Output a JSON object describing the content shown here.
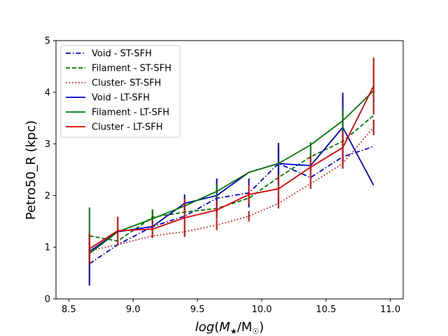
{
  "chart_data": {
    "type": "line",
    "title": "",
    "xlabel": "log(M★/M☉)",
    "ylabel": "Petro50_R (kpc)",
    "xlim": [
      8.4,
      11.1
    ],
    "ylim": [
      0,
      5
    ],
    "x_ticks": [
      8.5,
      9.0,
      9.5,
      10.0,
      10.5,
      11.0
    ],
    "x_tick_labels": [
      "8.5",
      "9.0",
      "9.5",
      "10.0",
      "10.5",
      "11.0"
    ],
    "y_ticks": [
      0,
      1,
      2,
      3,
      4,
      5
    ],
    "y_tick_labels": [
      "0",
      "1",
      "2",
      "3",
      "4",
      "5"
    ],
    "grid": false,
    "legend_position": "upper-left",
    "series": [
      {
        "name": "Void - ST-SFH",
        "color": "#0000cc",
        "dash": "dashdot",
        "x": [
          8.66,
          8.88,
          9.15,
          9.4,
          9.65,
          9.9,
          10.13,
          10.38,
          10.63,
          10.87
        ],
        "y": [
          0.68,
          1.05,
          1.4,
          1.6,
          1.95,
          2.05,
          2.62,
          2.35,
          2.75,
          2.95
        ],
        "err": [
          0.42,
          0,
          0,
          0,
          0.27,
          0.28,
          0.4,
          0,
          0,
          0
        ]
      },
      {
        "name": "Filament - ST-SFH",
        "color": "#007700",
        "dash": "dashed",
        "x": [
          8.66,
          8.88,
          9.15,
          9.4,
          9.65,
          9.9,
          10.13,
          10.38,
          10.63,
          10.87
        ],
        "y": [
          1.22,
          1.12,
          1.58,
          1.68,
          1.75,
          1.95,
          2.35,
          2.75,
          3.05,
          3.55
        ],
        "err": [
          0.55,
          0,
          0.15,
          0,
          0,
          0,
          0,
          0.28,
          0,
          0
        ]
      },
      {
        "name": "Cluster- ST-SFH",
        "color": "#dd0000",
        "dash": "dotted",
        "x": [
          8.66,
          8.88,
          9.15,
          9.4,
          9.65,
          9.9,
          10.13,
          10.38,
          10.63,
          10.87
        ],
        "y": [
          0.93,
          1.05,
          1.22,
          1.3,
          1.43,
          1.6,
          1.85,
          2.23,
          2.62,
          3.32
        ],
        "err": [
          0,
          0,
          0,
          0,
          0.1,
          0.1,
          0.1,
          0.1,
          0.1,
          0.15
        ]
      },
      {
        "name": "Void - LT-SFH",
        "color": "#0000cc",
        "dash": "solid",
        "x": [
          8.66,
          8.88,
          9.15,
          9.4,
          9.65,
          9.9,
          10.13,
          10.38,
          10.63,
          10.87
        ],
        "y": [
          0.92,
          1.3,
          1.4,
          1.85,
          2.0,
          2.45,
          2.62,
          2.58,
          3.32,
          2.2
        ],
        "err": [
          0,
          0,
          0,
          0.17,
          0.33,
          0,
          0.3,
          0,
          0.67,
          0
        ]
      },
      {
        "name": "Filament - LT-SFH",
        "color": "#007700",
        "dash": "solid",
        "x": [
          8.66,
          8.88,
          9.15,
          9.4,
          9.65,
          9.9,
          10.13,
          10.38,
          10.63,
          10.87
        ],
        "y": [
          0.88,
          1.3,
          1.55,
          1.8,
          2.08,
          2.45,
          2.62,
          2.98,
          3.45,
          4.03
        ],
        "err": [
          0,
          0,
          0.18,
          0,
          0.14,
          0,
          0,
          0,
          0.22,
          0
        ]
      },
      {
        "name": "Cluster - LT-SFH",
        "color": "#dd0000",
        "dash": "solid",
        "x": [
          8.66,
          8.88,
          9.15,
          9.4,
          9.65,
          9.9,
          10.13,
          10.38,
          10.63,
          10.87
        ],
        "y": [
          0.97,
          1.32,
          1.35,
          1.57,
          1.72,
          2.02,
          2.13,
          2.55,
          2.93,
          4.12
        ],
        "err": [
          0.3,
          0.27,
          0.17,
          0.37,
          0.18,
          0.18,
          0.28,
          0.23,
          0.32,
          0.55
        ]
      }
    ]
  }
}
